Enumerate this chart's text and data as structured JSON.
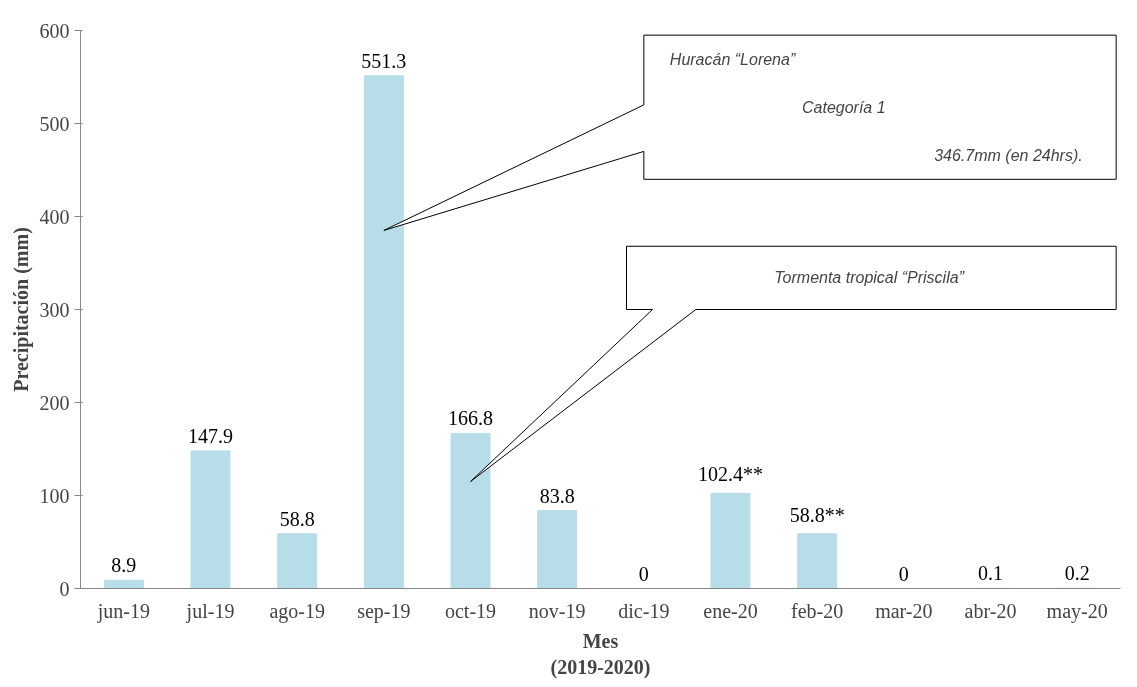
{
  "chart_data": {
    "type": "bar",
    "xlabel": "Mes\n(2019-2020)",
    "ylabel": "Precipitación (mm)",
    "categories": [
      "jun-19",
      "jul-19",
      "ago-19",
      "sep-19",
      "oct-19",
      "nov-19",
      "dic-19",
      "ene-20",
      "feb-20",
      "mar-20",
      "abr-20",
      "may-20"
    ],
    "values": [
      8.9,
      147.9,
      58.8,
      551.3,
      166.8,
      83.8,
      0,
      102.4,
      58.8,
      0,
      0.1,
      0.2
    ],
    "value_labels": [
      "8.9",
      "147.9",
      "58.8",
      "551.3",
      "166.8",
      "83.8",
      "0",
      "102.4**",
      "58.8**",
      "0",
      "0.1",
      "0.2"
    ],
    "color": "#b7dde8",
    "ylim": [
      0,
      600
    ],
    "yticks": [
      0,
      100,
      200,
      300,
      400,
      500,
      600
    ],
    "grid": false,
    "annotations": [
      "Huracán “Lorena”",
      "Categoría 1",
      "346.7mm (en 24hrs).",
      "Tormenta  tropical “Priscila”"
    ]
  }
}
